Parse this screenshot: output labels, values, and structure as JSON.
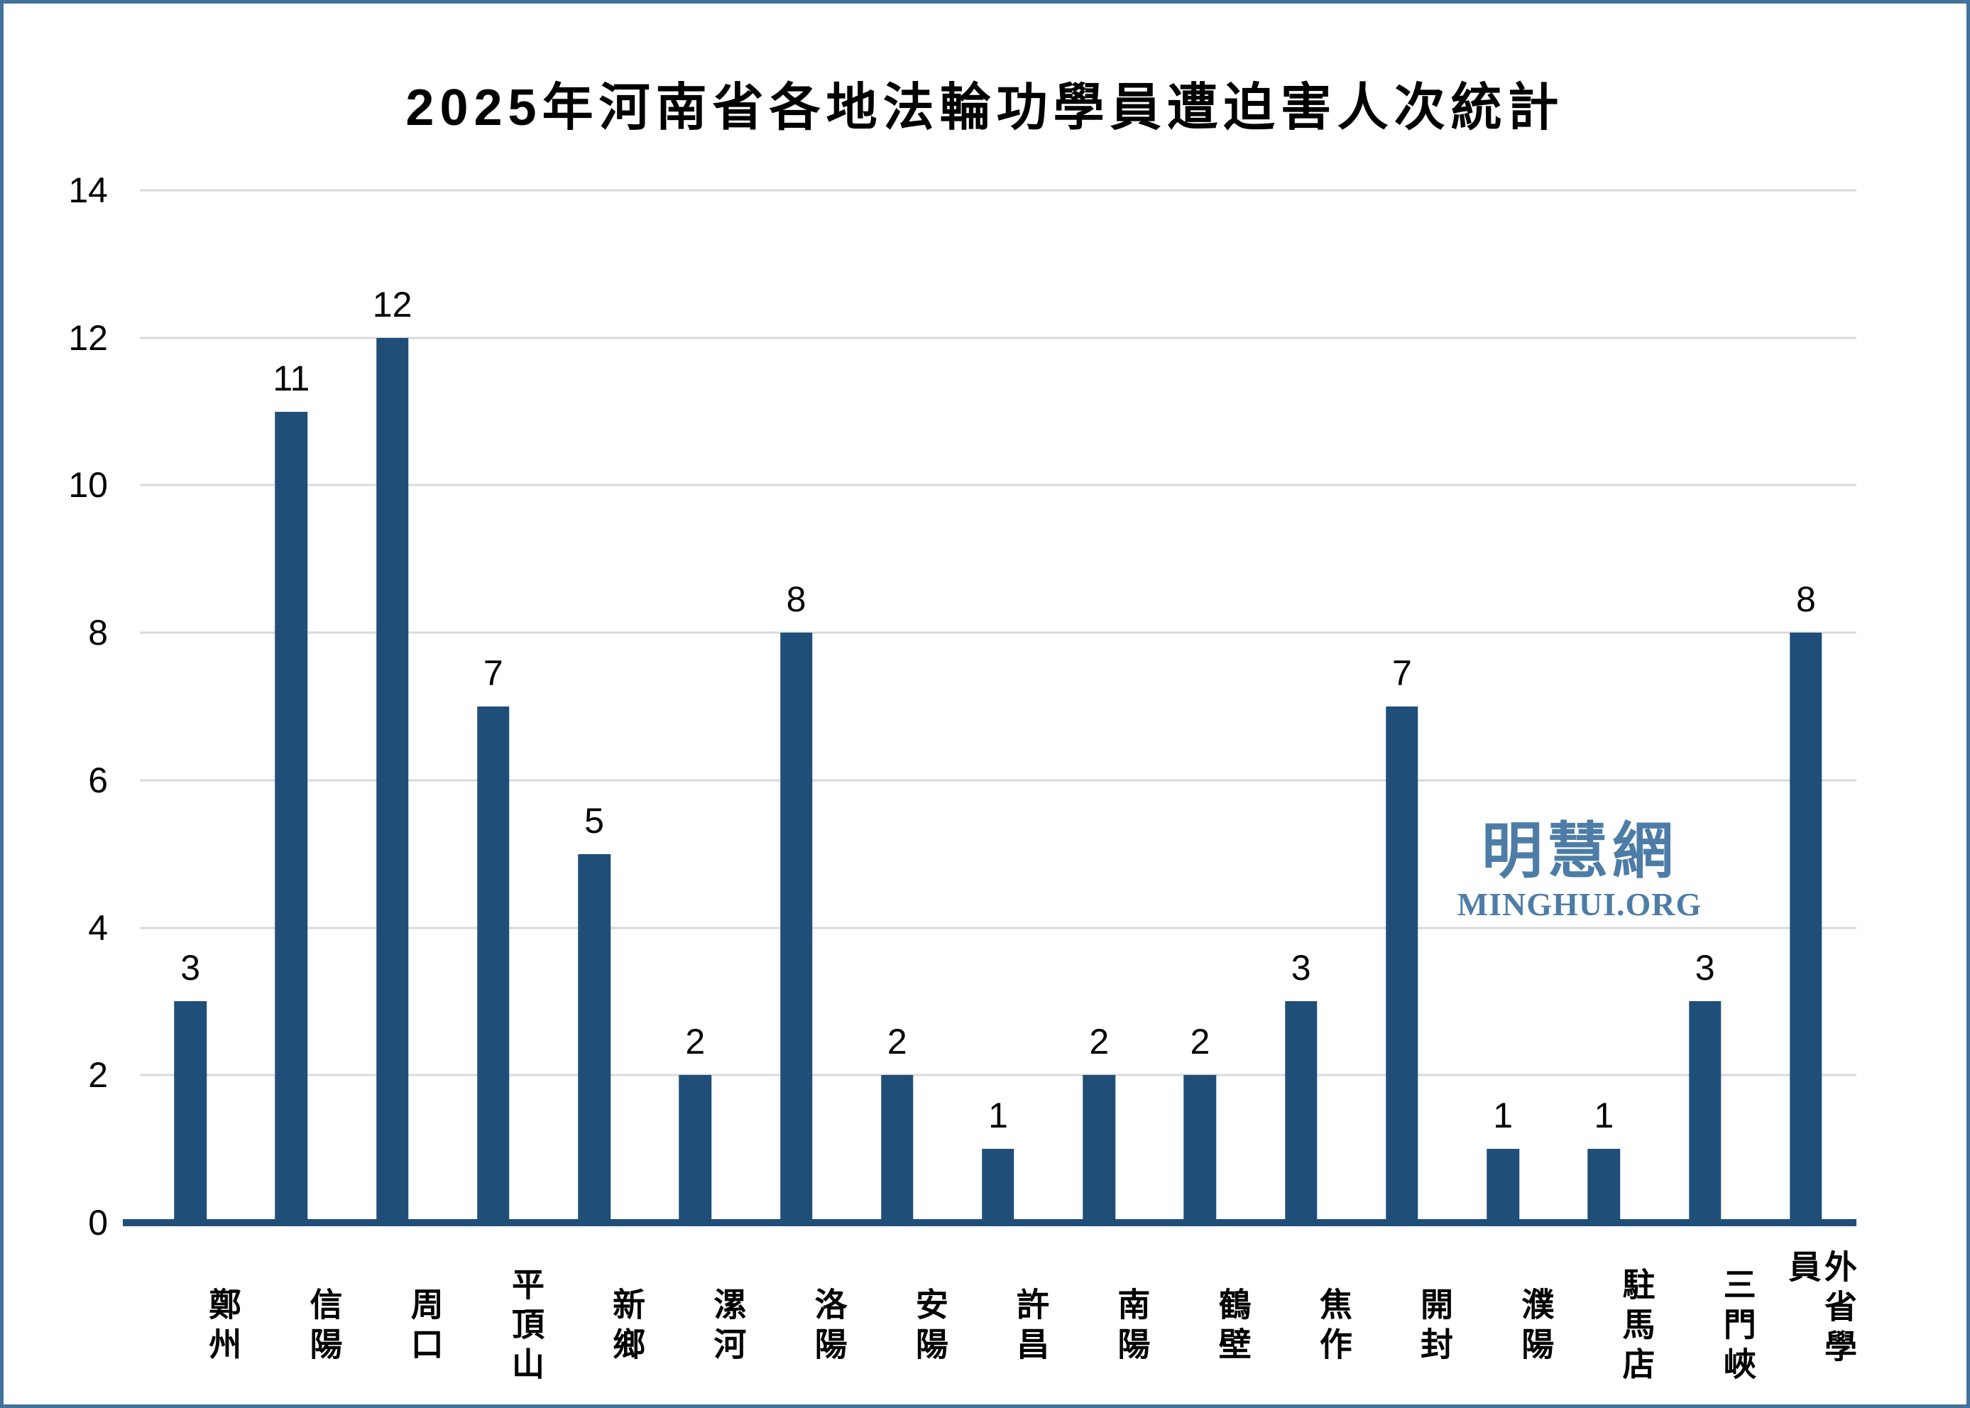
{
  "title": "2025年河南省各地法輪功學員遭迫害人次統計",
  "watermark": {
    "logo_cjk": "明慧網",
    "logo_latin": "MINGHUI.ORG"
  },
  "colors": {
    "bar": "#1F4E79",
    "axis": "#1F4E79",
    "gridline": "#D9D9D9",
    "frame": "#41719C",
    "watermark": "#4D7DA7",
    "text": "#000000"
  },
  "chart_data": {
    "type": "bar",
    "title": "2025年河南省各地法輪功學員遭迫害人次統計",
    "categories": [
      "鄭州",
      "信陽",
      "周口",
      "平頂山",
      "新鄉",
      "漯河",
      "洛陽",
      "安陽",
      "許昌",
      "南陽",
      "鶴壁",
      "焦作",
      "開封",
      "濮陽",
      "駐馬店",
      "三門峽",
      "外省學員"
    ],
    "values": [
      3,
      11,
      12,
      7,
      5,
      2,
      8,
      2,
      1,
      2,
      2,
      3,
      7,
      1,
      1,
      3,
      8
    ],
    "xlabel": "",
    "ylabel": "",
    "ylim": [
      0,
      14
    ],
    "yticks": [
      0,
      2,
      4,
      6,
      8,
      10,
      12,
      14
    ],
    "grid": true,
    "legend_position": "none",
    "data_labels": true,
    "bar_color": "#1F4E79",
    "x_label_orientation": "vertical"
  }
}
